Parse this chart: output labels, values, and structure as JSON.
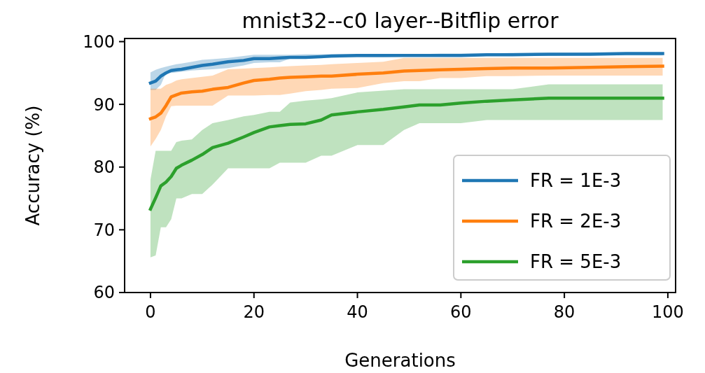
{
  "chart_data": {
    "type": "line",
    "title": "mnist32--c0 layer--Bitflip error",
    "xlabel": "Generations",
    "ylabel": "Accuracy (%)",
    "xlim": [
      -5,
      101.5
    ],
    "ylim": [
      60,
      100.5
    ],
    "xticks": [
      0,
      20,
      40,
      60,
      80,
      100
    ],
    "yticks": [
      60,
      70,
      80,
      90,
      100
    ],
    "grid": false,
    "legend": "bottom right",
    "series": [
      {
        "name": "FR = 1E-3",
        "color": "#1f77b4",
        "x": [
          0,
          1,
          2,
          3,
          4,
          5,
          6,
          8,
          10,
          12,
          15,
          18,
          20,
          23,
          25,
          27,
          30,
          33,
          35,
          40,
          45,
          49,
          52,
          56,
          60,
          65,
          70,
          77,
          85,
          92,
          99
        ],
        "values": [
          93.4,
          93.7,
          94.5,
          95.0,
          95.4,
          95.5,
          95.6,
          95.9,
          96.2,
          96.4,
          96.8,
          97.0,
          97.3,
          97.3,
          97.4,
          97.5,
          97.5,
          97.6,
          97.7,
          97.8,
          97.8,
          97.8,
          97.8,
          97.8,
          97.8,
          97.9,
          97.9,
          98.0,
          98.0,
          98.1,
          98.1
        ],
        "lower": [
          92.3,
          92.3,
          93.1,
          95.0,
          95.0,
          95.1,
          95.2,
          95.4,
          95.5,
          95.6,
          95.8,
          96.2,
          96.6,
          96.7,
          96.7,
          97.3,
          97.3,
          97.4,
          97.4,
          97.5,
          97.5,
          97.6,
          97.6,
          97.6,
          97.6,
          97.7,
          97.7,
          97.7,
          97.8,
          97.8,
          97.8
        ],
        "upper": [
          95.1,
          95.5,
          95.8,
          96.0,
          96.2,
          96.4,
          96.5,
          96.8,
          97.1,
          97.2,
          97.4,
          97.7,
          97.9,
          97.9,
          97.9,
          97.9,
          98.0,
          98.0,
          98.0,
          98.0,
          98.0,
          98.0,
          98.0,
          98.1,
          98.1,
          98.1,
          98.2,
          98.2,
          98.3,
          98.3,
          98.3
        ]
      },
      {
        "name": "FR = 2E-3",
        "color": "#ff7f0e",
        "x": [
          0,
          1,
          2,
          3,
          4,
          5,
          6,
          8,
          10,
          12,
          15,
          18,
          20,
          23,
          25,
          27,
          30,
          33,
          35,
          40,
          45,
          49,
          52,
          56,
          60,
          65,
          70,
          77,
          85,
          92,
          99
        ],
        "values": [
          87.7,
          88.0,
          88.6,
          89.8,
          91.2,
          91.5,
          91.8,
          92.0,
          92.1,
          92.4,
          92.7,
          93.4,
          93.8,
          94.0,
          94.2,
          94.3,
          94.4,
          94.5,
          94.5,
          94.8,
          95.0,
          95.3,
          95.4,
          95.5,
          95.6,
          95.7,
          95.8,
          95.8,
          95.9,
          96.0,
          96.1
        ],
        "lower": [
          83.3,
          84.5,
          85.9,
          88.1,
          89.7,
          89.8,
          89.8,
          89.8,
          89.8,
          89.8,
          91.4,
          91.4,
          91.4,
          91.5,
          91.5,
          91.7,
          92.1,
          92.3,
          92.5,
          92.6,
          93.4,
          93.7,
          93.7,
          94.2,
          94.2,
          94.5,
          94.5,
          94.6,
          94.6,
          94.6,
          94.6
        ],
        "upper": [
          92.5,
          92.5,
          92.5,
          93.1,
          93.4,
          93.8,
          94.0,
          94.2,
          94.4,
          94.6,
          95.6,
          95.7,
          95.8,
          95.9,
          96.0,
          96.1,
          96.2,
          96.3,
          96.4,
          96.6,
          96.8,
          97.4,
          97.4,
          97.4,
          97.4,
          97.4,
          97.4,
          97.4,
          97.4,
          97.4,
          97.4
        ]
      },
      {
        "name": "FR = 5E-3",
        "color": "#2ca02c",
        "x": [
          0,
          1,
          2,
          3,
          4,
          5,
          6,
          8,
          10,
          12,
          15,
          18,
          20,
          23,
          25,
          27,
          30,
          33,
          35,
          40,
          45,
          49,
          52,
          56,
          60,
          65,
          70,
          77,
          85,
          92,
          99
        ],
        "values": [
          73.3,
          75.1,
          77.0,
          77.6,
          78.5,
          79.8,
          80.3,
          81.1,
          82.0,
          83.1,
          83.8,
          84.8,
          85.5,
          86.4,
          86.6,
          86.8,
          86.9,
          87.5,
          88.3,
          88.8,
          89.2,
          89.6,
          89.9,
          89.9,
          90.2,
          90.5,
          90.7,
          91.0,
          91.0,
          91.0,
          91.0
        ],
        "lower": [
          65.6,
          65.9,
          70.4,
          70.4,
          71.7,
          75.0,
          75.0,
          75.7,
          75.7,
          77.2,
          79.8,
          79.8,
          79.8,
          79.8,
          80.7,
          80.7,
          80.7,
          81.8,
          81.8,
          83.5,
          83.5,
          85.9,
          87.0,
          87.0,
          87.0,
          87.5,
          87.5,
          87.5,
          87.5,
          87.5,
          87.5
        ],
        "upper": [
          78.0,
          82.6,
          82.6,
          82.6,
          82.6,
          84.0,
          84.2,
          84.4,
          85.9,
          87.0,
          87.5,
          88.1,
          88.3,
          88.8,
          88.8,
          90.3,
          90.6,
          90.8,
          91.0,
          91.9,
          92.2,
          92.4,
          92.4,
          92.4,
          92.4,
          92.4,
          92.4,
          93.2,
          93.2,
          93.2,
          93.2
        ]
      }
    ]
  }
}
